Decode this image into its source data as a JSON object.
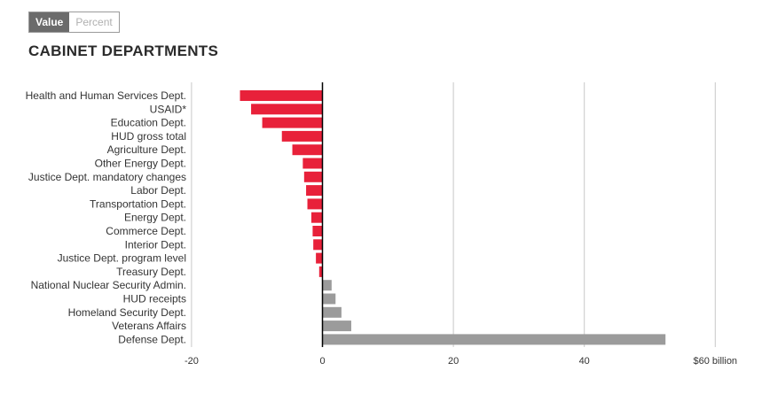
{
  "toggle": {
    "value_label": "Value",
    "percent_label": "Percent",
    "selected": "Value"
  },
  "chart_title": "CABINET DEPARTMENTS",
  "colors": {
    "negative": "#e8213a",
    "positive": "#9b9b9b",
    "grid": "#c8c8c8",
    "zero_axis": "#000000"
  },
  "chart_data": {
    "type": "bar",
    "orientation": "horizontal",
    "title": "CABINET DEPARTMENTS",
    "xlabel": "",
    "ylabel": "",
    "xlim": [
      -20,
      60
    ],
    "xticks": [
      -20,
      0,
      20,
      40,
      60
    ],
    "xtick_labels": [
      "-20",
      "0",
      "20",
      "40",
      "$60 billion"
    ],
    "grid": true,
    "categories": [
      "Health and Human Services Dept.",
      "USAID*",
      "Education Dept.",
      "HUD gross total",
      "Agriculture Dept.",
      "Other Energy Dept.",
      "Justice Dept. mandatory changes",
      "Labor Dept.",
      "Transportation Dept.",
      "Energy Dept.",
      "Commerce Dept.",
      "Interior Dept.",
      "Justice Dept. program level",
      "Treasury Dept.",
      "National Nuclear Security Admin.",
      "HUD receipts",
      "Homeland Security Dept.",
      "Veterans Affairs",
      "Defense Dept."
    ],
    "values": [
      -12.6,
      -10.9,
      -9.2,
      -6.2,
      -4.6,
      -3.0,
      -2.8,
      -2.5,
      -2.3,
      -1.7,
      -1.5,
      -1.4,
      -1.0,
      -0.5,
      1.4,
      2.0,
      2.9,
      4.4,
      52.4
    ]
  }
}
